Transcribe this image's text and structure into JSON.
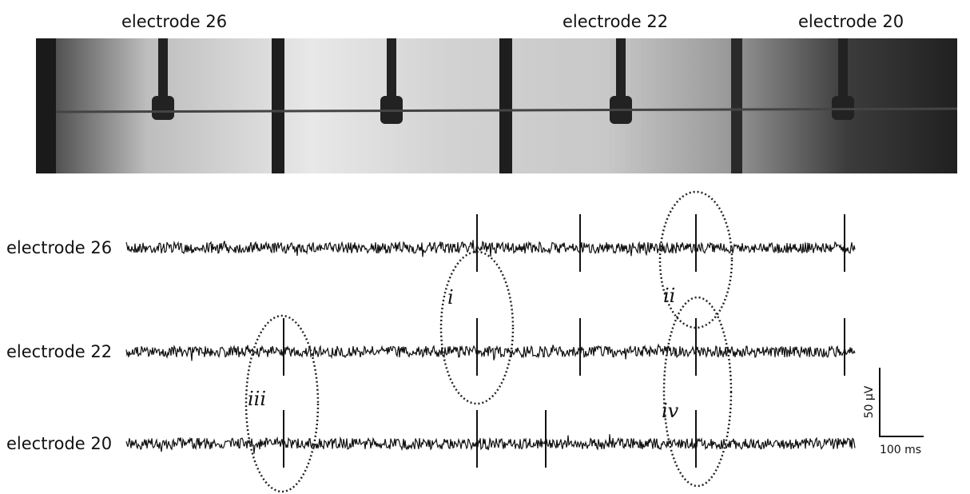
{
  "photo_labels": [
    "electrode 26",
    "electrode 22",
    "electrode 20"
  ],
  "traces": [
    {
      "label": "electrode 26"
    },
    {
      "label": "electrode 22"
    },
    {
      "label": "electrode 20"
    }
  ],
  "annotations": [
    "i",
    "ii",
    "iii",
    "iv"
  ],
  "scale_bar": {
    "vertical": "50 µV",
    "horizontal": "100 ms"
  }
}
